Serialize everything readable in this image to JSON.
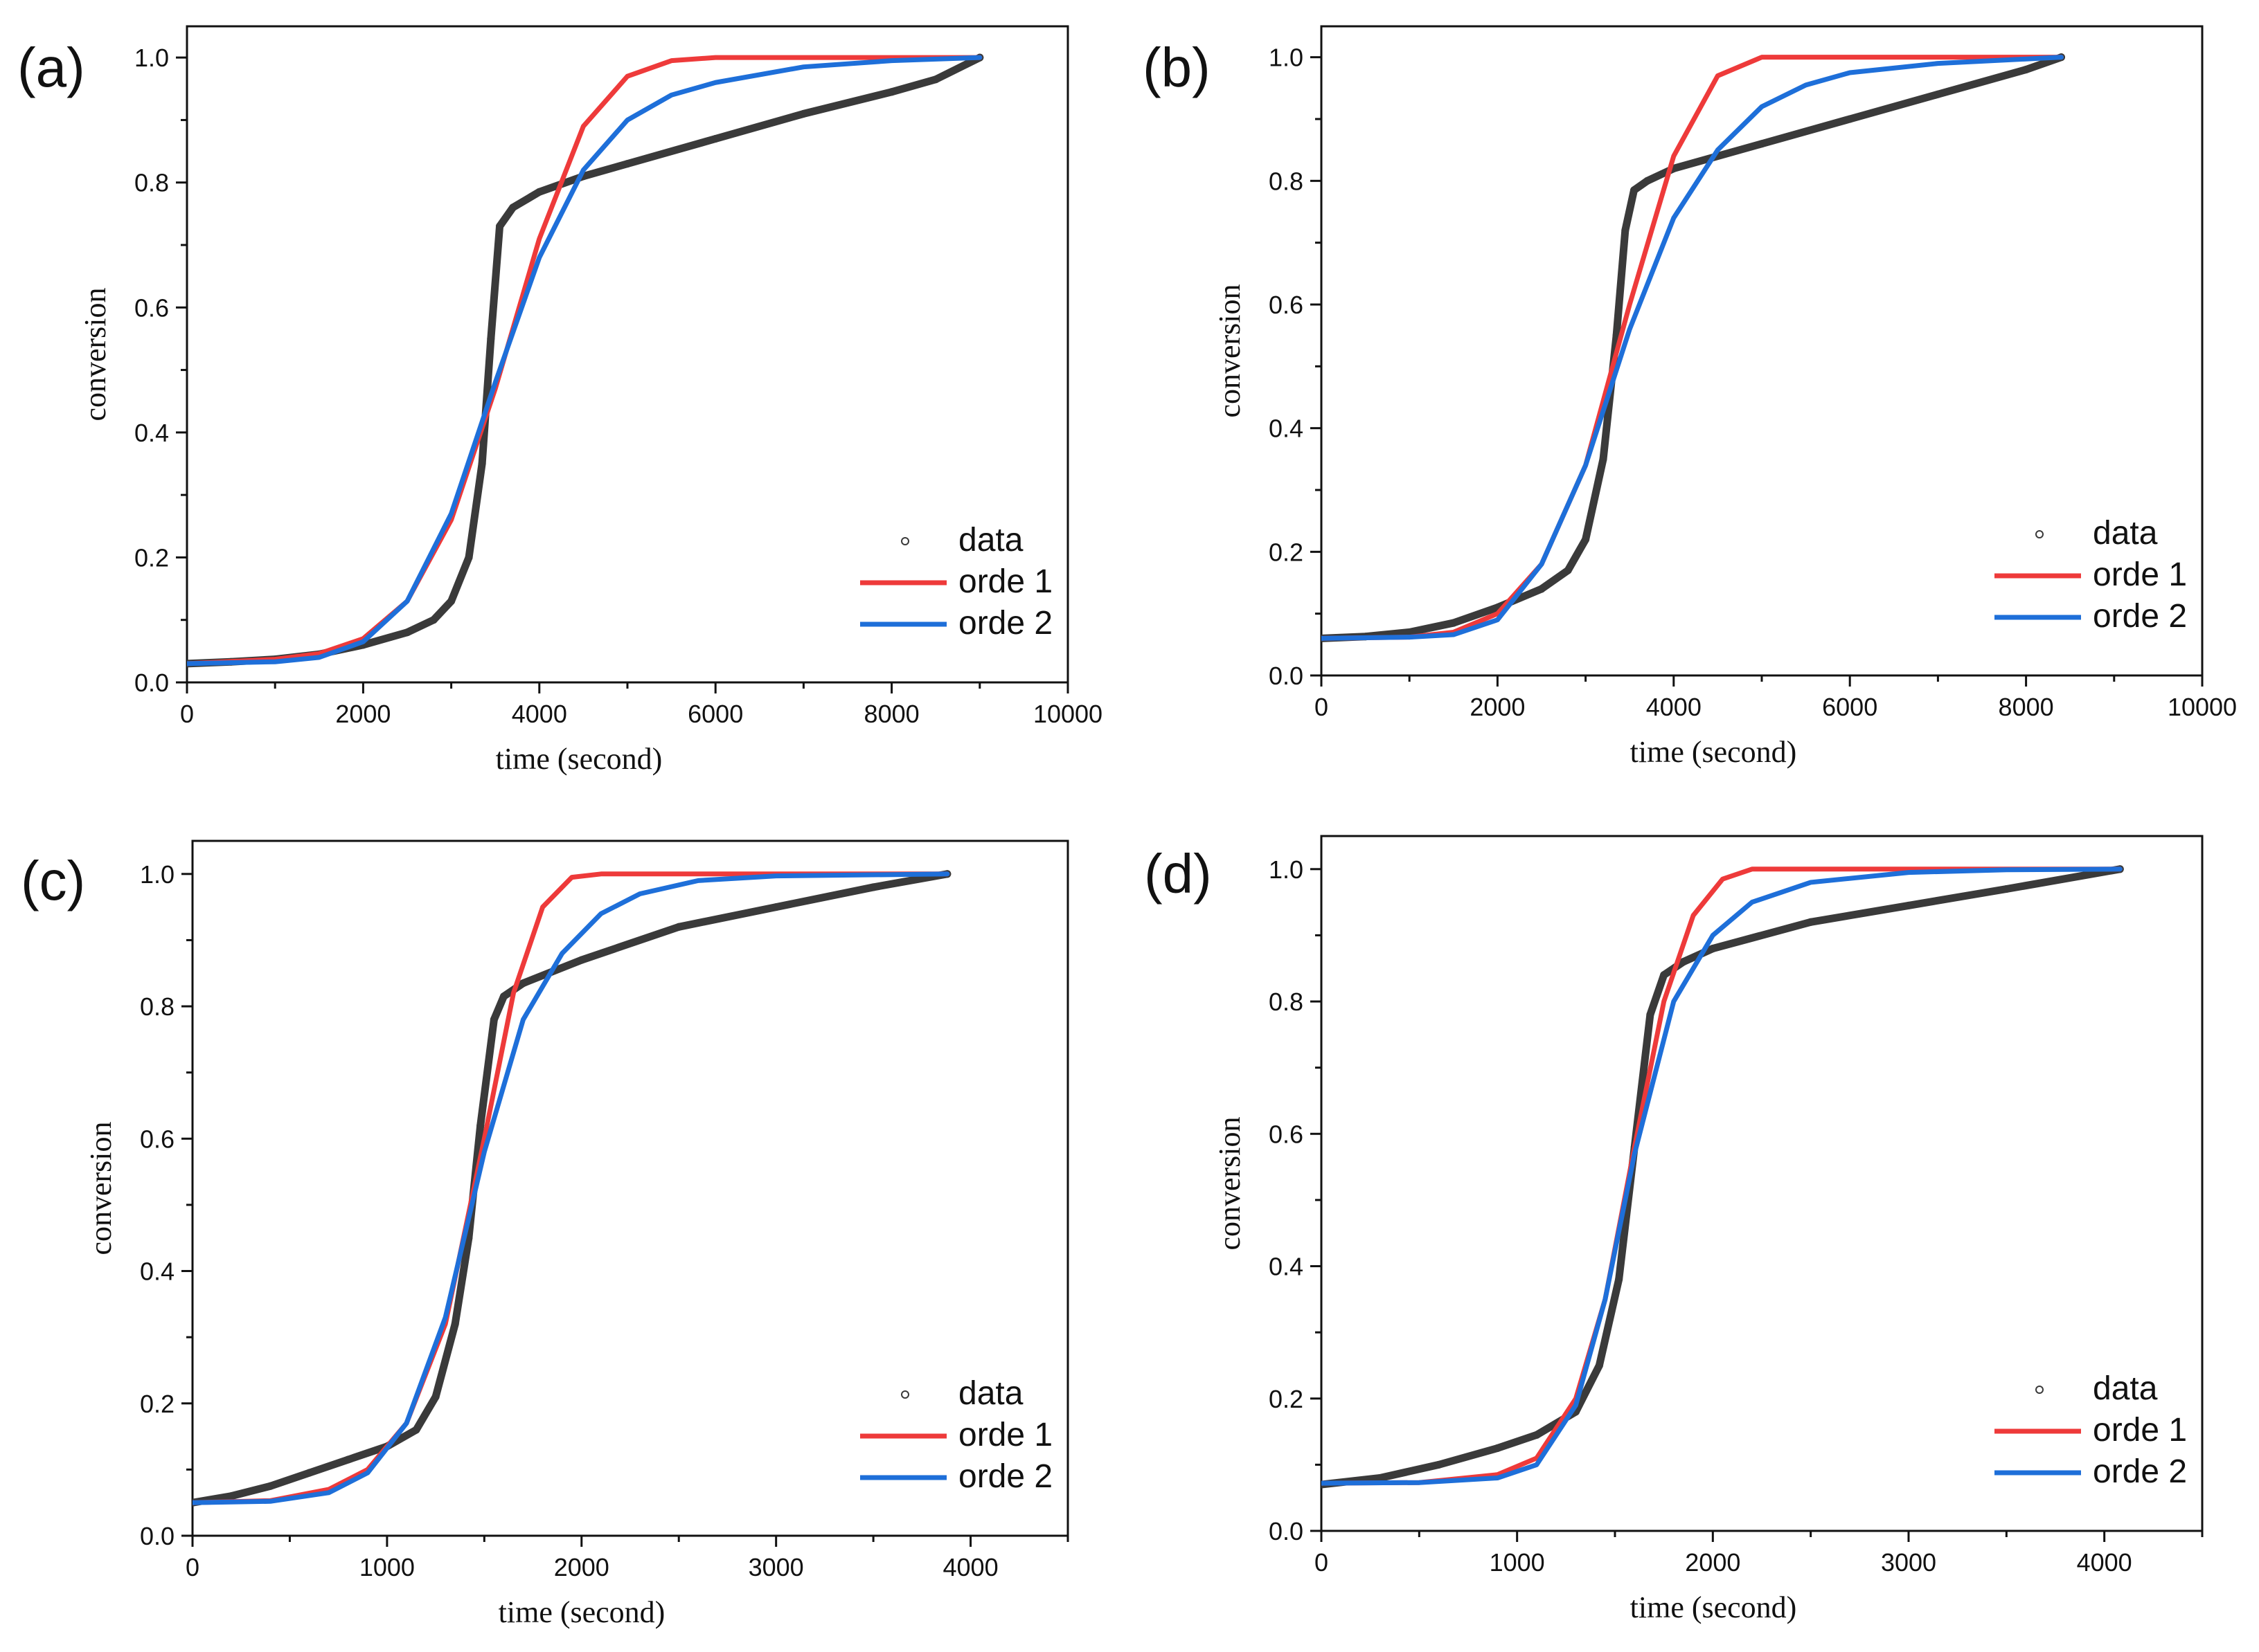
{
  "chart_data": [
    {
      "type": "line",
      "panel": "(a)",
      "xlabel": "time (second)",
      "ylabel": "conversion",
      "xlim": [
        0,
        10000
      ],
      "ylim": [
        0,
        1.05
      ],
      "xticks": [
        0,
        2000,
        4000,
        6000,
        8000,
        10000
      ],
      "yticks": [
        0.0,
        0.2,
        0.4,
        0.6,
        0.8,
        1.0
      ],
      "legend_position": "bottom-right",
      "legend": [
        "data",
        "orde 1",
        "orde 2"
      ],
      "series": [
        {
          "name": "data",
          "style": "markers",
          "color": "#3a3a3a",
          "x": [
            0,
            500,
            1000,
            1500,
            2000,
            2500,
            2800,
            3000,
            3200,
            3350,
            3450,
            3550,
            3700,
            4000,
            4500,
            5000,
            6000,
            7000,
            8000,
            8500,
            9000
          ],
          "y": [
            0.03,
            0.033,
            0.037,
            0.045,
            0.06,
            0.08,
            0.1,
            0.13,
            0.2,
            0.35,
            0.55,
            0.73,
            0.76,
            0.785,
            0.81,
            0.83,
            0.87,
            0.91,
            0.945,
            0.965,
            1.0
          ]
        },
        {
          "name": "orde 1",
          "style": "line",
          "color": "#ee3a3a",
          "x": [
            0,
            1000,
            1500,
            2000,
            2500,
            3000,
            3500,
            4000,
            4500,
            5000,
            5500,
            6000,
            7000,
            9000
          ],
          "y": [
            0.03,
            0.037,
            0.046,
            0.07,
            0.13,
            0.26,
            0.47,
            0.71,
            0.89,
            0.97,
            0.995,
            1.0,
            1.0,
            1.0
          ]
        },
        {
          "name": "orde 2",
          "style": "line",
          "color": "#1e6fd9",
          "x": [
            0,
            1000,
            1500,
            2000,
            2500,
            3000,
            3500,
            4000,
            4500,
            5000,
            5500,
            6000,
            7000,
            8000,
            9000
          ],
          "y": [
            0.03,
            0.033,
            0.04,
            0.065,
            0.13,
            0.27,
            0.48,
            0.68,
            0.82,
            0.9,
            0.94,
            0.96,
            0.985,
            0.995,
            1.0
          ]
        }
      ]
    },
    {
      "type": "line",
      "panel": "(b)",
      "xlabel": "time (second)",
      "ylabel": "conversion",
      "xlim": [
        0,
        10000
      ],
      "ylim": [
        0,
        1.05
      ],
      "xticks": [
        0,
        2000,
        4000,
        6000,
        8000,
        10000
      ],
      "yticks": [
        0.0,
        0.2,
        0.4,
        0.6,
        0.8,
        1.0
      ],
      "legend_position": "bottom-right",
      "legend": [
        "data",
        "orde 1",
        "orde 2"
      ],
      "series": [
        {
          "name": "data",
          "style": "markers",
          "color": "#3a3a3a",
          "x": [
            0,
            500,
            1000,
            1500,
            2000,
            2500,
            2800,
            3000,
            3200,
            3350,
            3450,
            3550,
            3700,
            4000,
            5000,
            6000,
            7000,
            8000,
            8400
          ],
          "y": [
            0.06,
            0.063,
            0.07,
            0.085,
            0.11,
            0.14,
            0.17,
            0.22,
            0.35,
            0.55,
            0.72,
            0.785,
            0.8,
            0.82,
            0.86,
            0.9,
            0.94,
            0.98,
            1.0
          ]
        },
        {
          "name": "orde 1",
          "style": "line",
          "color": "#ee3a3a",
          "x": [
            0,
            1000,
            1500,
            2000,
            2500,
            3000,
            3500,
            4000,
            4500,
            5000,
            6000,
            8400
          ],
          "y": [
            0.06,
            0.062,
            0.07,
            0.1,
            0.18,
            0.34,
            0.6,
            0.84,
            0.97,
            1.0,
            1.0,
            1.0
          ]
        },
        {
          "name": "orde 2",
          "style": "line",
          "color": "#1e6fd9",
          "x": [
            0,
            1000,
            1500,
            2000,
            2500,
            3000,
            3500,
            4000,
            4500,
            5000,
            5500,
            6000,
            7000,
            8400
          ],
          "y": [
            0.06,
            0.062,
            0.066,
            0.09,
            0.18,
            0.34,
            0.56,
            0.74,
            0.85,
            0.92,
            0.955,
            0.975,
            0.99,
            1.0
          ]
        }
      ]
    },
    {
      "type": "line",
      "panel": "(c)",
      "xlabel": "time (second)",
      "ylabel": "conversion",
      "xlim": [
        0,
        4500
      ],
      "ylim": [
        0,
        1.05
      ],
      "xticks": [
        0,
        1000,
        2000,
        3000,
        4000
      ],
      "yticks": [
        0.0,
        0.2,
        0.4,
        0.6,
        0.8,
        1.0
      ],
      "legend_position": "bottom-right",
      "legend": [
        "data",
        "orde 1",
        "orde 2"
      ],
      "series": [
        {
          "name": "data",
          "style": "markers",
          "color": "#3a3a3a",
          "x": [
            0,
            200,
            400,
            600,
            800,
            1000,
            1150,
            1250,
            1350,
            1420,
            1480,
            1550,
            1600,
            1700,
            2000,
            2500,
            3000,
            3500,
            3880
          ],
          "y": [
            0.05,
            0.06,
            0.075,
            0.095,
            0.115,
            0.135,
            0.16,
            0.21,
            0.32,
            0.45,
            0.62,
            0.78,
            0.815,
            0.835,
            0.87,
            0.92,
            0.95,
            0.98,
            1.0
          ]
        },
        {
          "name": "orde 1",
          "style": "line",
          "color": "#ee3a3a",
          "x": [
            0,
            400,
            700,
            900,
            1100,
            1300,
            1500,
            1650,
            1800,
            1950,
            2100,
            3000,
            3880
          ],
          "y": [
            0.05,
            0.053,
            0.07,
            0.1,
            0.17,
            0.32,
            0.6,
            0.82,
            0.95,
            0.995,
            1.0,
            1.0,
            1.0
          ]
        },
        {
          "name": "orde 2",
          "style": "line",
          "color": "#1e6fd9",
          "x": [
            0,
            400,
            700,
            900,
            1100,
            1300,
            1500,
            1700,
            1900,
            2100,
            2300,
            2600,
            3000,
            3880
          ],
          "y": [
            0.05,
            0.052,
            0.065,
            0.095,
            0.17,
            0.33,
            0.58,
            0.78,
            0.88,
            0.94,
            0.97,
            0.99,
            0.997,
            1.0
          ]
        }
      ]
    },
    {
      "type": "line",
      "panel": "(d)",
      "xlabel": "time (second)",
      "ylabel": "conversion",
      "xlim": [
        0,
        4500
      ],
      "ylim": [
        0,
        1.05
      ],
      "xticks": [
        0,
        1000,
        2000,
        3000,
        4000
      ],
      "yticks": [
        0.0,
        0.2,
        0.4,
        0.6,
        0.8,
        1.0
      ],
      "legend_position": "bottom-right",
      "legend": [
        "data",
        "orde 1",
        "orde 2"
      ],
      "series": [
        {
          "name": "data",
          "style": "markers",
          "color": "#3a3a3a",
          "x": [
            0,
            300,
            600,
            900,
            1100,
            1300,
            1420,
            1520,
            1600,
            1680,
            1750,
            1850,
            2000,
            2500,
            3000,
            3500,
            4080
          ],
          "y": [
            0.07,
            0.08,
            0.1,
            0.125,
            0.145,
            0.18,
            0.25,
            0.38,
            0.58,
            0.78,
            0.84,
            0.86,
            0.88,
            0.92,
            0.945,
            0.97,
            1.0
          ]
        },
        {
          "name": "orde 1",
          "style": "line",
          "color": "#ee3a3a",
          "x": [
            0,
            500,
            900,
            1100,
            1300,
            1450,
            1600,
            1750,
            1900,
            2050,
            2200,
            3000,
            4080
          ],
          "y": [
            0.072,
            0.073,
            0.085,
            0.11,
            0.2,
            0.35,
            0.58,
            0.8,
            0.93,
            0.985,
            1.0,
            1.0,
            1.0
          ]
        },
        {
          "name": "orde 2",
          "style": "line",
          "color": "#1e6fd9",
          "x": [
            0,
            500,
            900,
            1100,
            1300,
            1450,
            1600,
            1800,
            2000,
            2200,
            2500,
            3000,
            3500,
            4080
          ],
          "y": [
            0.072,
            0.073,
            0.08,
            0.1,
            0.19,
            0.35,
            0.57,
            0.8,
            0.9,
            0.95,
            0.98,
            0.995,
            0.999,
            1.0
          ]
        }
      ]
    }
  ]
}
